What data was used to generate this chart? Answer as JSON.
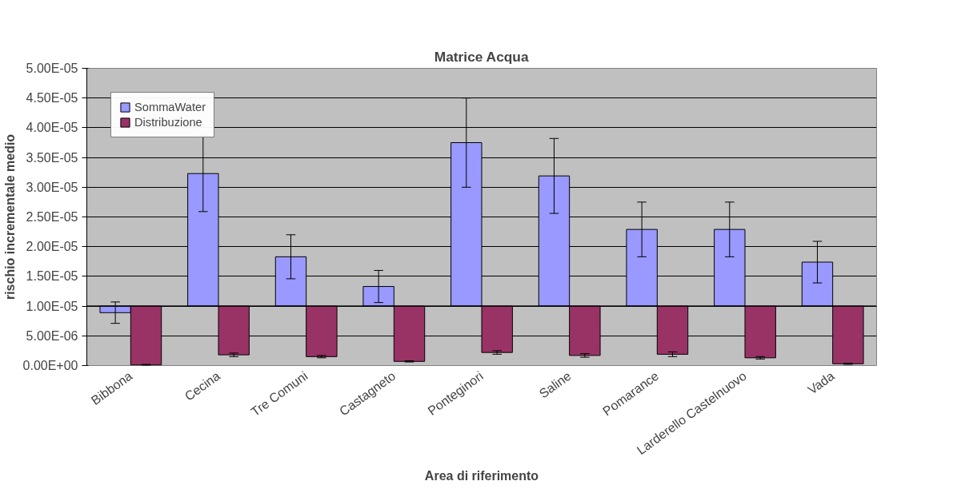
{
  "chart_data": {
    "type": "bar",
    "title": "Matrice Acqua",
    "xlabel": "Area di riferimento",
    "ylabel": "rischio incrementale medio",
    "categories": [
      "Bibbona",
      "Cecina",
      "Tre Comuni",
      "Castagneto",
      "Ponteginori",
      "Saline",
      "Pomarance",
      "Larderello Castelnuovo",
      "Vada"
    ],
    "series": [
      {
        "name": "SommaWater",
        "color": "#9999ff",
        "base": [
          1e-05,
          1e-05,
          1e-05,
          1e-05,
          1e-05,
          1e-05,
          1e-05,
          1e-05,
          1e-05
        ],
        "values": [
          -1.1e-06,
          2.23e-05,
          8.3e-06,
          3.3e-06,
          2.75e-05,
          2.19e-05,
          1.29e-05,
          1.29e-05,
          7.4e-06
        ],
        "errors": [
          1.8e-06,
          6.4e-06,
          3.7e-06,
          2.7e-06,
          7.5e-06,
          6.3e-06,
          4.6e-06,
          4.6e-06,
          3.5e-06
        ]
      },
      {
        "name": "Distribuzione",
        "color": "#993366",
        "base": [
          1e-05,
          1e-05,
          1e-05,
          1e-05,
          1e-05,
          1e-05,
          1e-05,
          1e-05,
          1e-05
        ],
        "values": [
          -9.9e-06,
          -8.2e-06,
          -8.5e-06,
          -9.3e-06,
          -7.8e-06,
          -8.3e-06,
          -8.1e-06,
          -8.7e-06,
          -9.7e-06
        ],
        "errors": [
          1e-07,
          3e-07,
          2e-07,
          1e-07,
          3e-07,
          3e-07,
          4e-07,
          2e-07,
          1e-07
        ]
      }
    ],
    "ylim": [
      0,
      5e-05
    ],
    "yticks": [
      {
        "value": 0,
        "label": "0.00E+00"
      },
      {
        "value": 5e-06,
        "label": "5.00E-06"
      },
      {
        "value": 1e-05,
        "label": "1.00E-05"
      },
      {
        "value": 1.5e-05,
        "label": "1.50E-05"
      },
      {
        "value": 2e-05,
        "label": "2.00E-05"
      },
      {
        "value": 2.5e-05,
        "label": "2.50E-05"
      },
      {
        "value": 3e-05,
        "label": "3.00E-05"
      },
      {
        "value": 3.5e-05,
        "label": "3.50E-05"
      },
      {
        "value": 4e-05,
        "label": "4.00E-05"
      },
      {
        "value": 4.5e-05,
        "label": "4.50E-05"
      },
      {
        "value": 5e-05,
        "label": "5.00E-05"
      }
    ],
    "grid": "y",
    "legend": "top left"
  }
}
